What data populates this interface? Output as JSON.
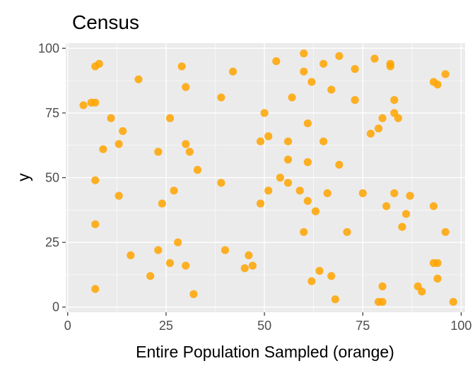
{
  "chart_data": {
    "type": "scatter",
    "title": "Census",
    "xlabel": "Entire Population Sampled (orange)",
    "ylabel": "y",
    "xlim": [
      -0.5,
      101
    ],
    "ylim": [
      -2,
      102
    ],
    "x_ticks": [
      0,
      25,
      50,
      75,
      100
    ],
    "y_ticks": [
      0,
      25,
      50,
      75,
      100
    ],
    "grid": true,
    "legend": "none",
    "point_color": "#FFA500",
    "panel_background": "#EBEBEB",
    "series": [
      {
        "points": [
          [
            4,
            78
          ],
          [
            6,
            79
          ],
          [
            7,
            79
          ],
          [
            7,
            93
          ],
          [
            8,
            94
          ],
          [
            11,
            73
          ],
          [
            9,
            61
          ],
          [
            7,
            49
          ],
          [
            7,
            32
          ],
          [
            7,
            7
          ],
          [
            13,
            63
          ],
          [
            14,
            68
          ],
          [
            13,
            43
          ],
          [
            18,
            88
          ],
          [
            16,
            20
          ],
          [
            21,
            12
          ],
          [
            23,
            22
          ],
          [
            23,
            60
          ],
          [
            24,
            40
          ],
          [
            26,
            73
          ],
          [
            26,
            17
          ],
          [
            27,
            45
          ],
          [
            28,
            25
          ],
          [
            29,
            93
          ],
          [
            30,
            85
          ],
          [
            30,
            63
          ],
          [
            31,
            60
          ],
          [
            30,
            16
          ],
          [
            32,
            5
          ],
          [
            33,
            53
          ],
          [
            39,
            81
          ],
          [
            39,
            48
          ],
          [
            40,
            22
          ],
          [
            42,
            91
          ],
          [
            45,
            15
          ],
          [
            46,
            20
          ],
          [
            47,
            16
          ],
          [
            49,
            64
          ],
          [
            49,
            40
          ],
          [
            50,
            75
          ],
          [
            51,
            66
          ],
          [
            51,
            45
          ],
          [
            53,
            95
          ],
          [
            54,
            50
          ],
          [
            56,
            64
          ],
          [
            56,
            57
          ],
          [
            56,
            48
          ],
          [
            57,
            81
          ],
          [
            59,
            45
          ],
          [
            60,
            98
          ],
          [
            60,
            91
          ],
          [
            60,
            29
          ],
          [
            61,
            71
          ],
          [
            61,
            56
          ],
          [
            61,
            41
          ],
          [
            62,
            87
          ],
          [
            62,
            10
          ],
          [
            63,
            37
          ],
          [
            64,
            14
          ],
          [
            65,
            94
          ],
          [
            65,
            64
          ],
          [
            66,
            44
          ],
          [
            67,
            84
          ],
          [
            67,
            12
          ],
          [
            68,
            3
          ],
          [
            69,
            97
          ],
          [
            69,
            55
          ],
          [
            71,
            29
          ],
          [
            73,
            92
          ],
          [
            73,
            80
          ],
          [
            75,
            44
          ],
          [
            78,
            96
          ],
          [
            77,
            67
          ],
          [
            79,
            69
          ],
          [
            79,
            2
          ],
          [
            80,
            73
          ],
          [
            80,
            8
          ],
          [
            80,
            2
          ],
          [
            81,
            39
          ],
          [
            82,
            94
          ],
          [
            82,
            93
          ],
          [
            83,
            80
          ],
          [
            83,
            75
          ],
          [
            83,
            44
          ],
          [
            84,
            73
          ],
          [
            85,
            31
          ],
          [
            86,
            36
          ],
          [
            87,
            43
          ],
          [
            89,
            8
          ],
          [
            90,
            6
          ],
          [
            93,
            87
          ],
          [
            94,
            86
          ],
          [
            93,
            39
          ],
          [
            93,
            17
          ],
          [
            94,
            17
          ],
          [
            94,
            11
          ],
          [
            96,
            90
          ],
          [
            96,
            29
          ],
          [
            98,
            2
          ]
        ]
      }
    ]
  }
}
